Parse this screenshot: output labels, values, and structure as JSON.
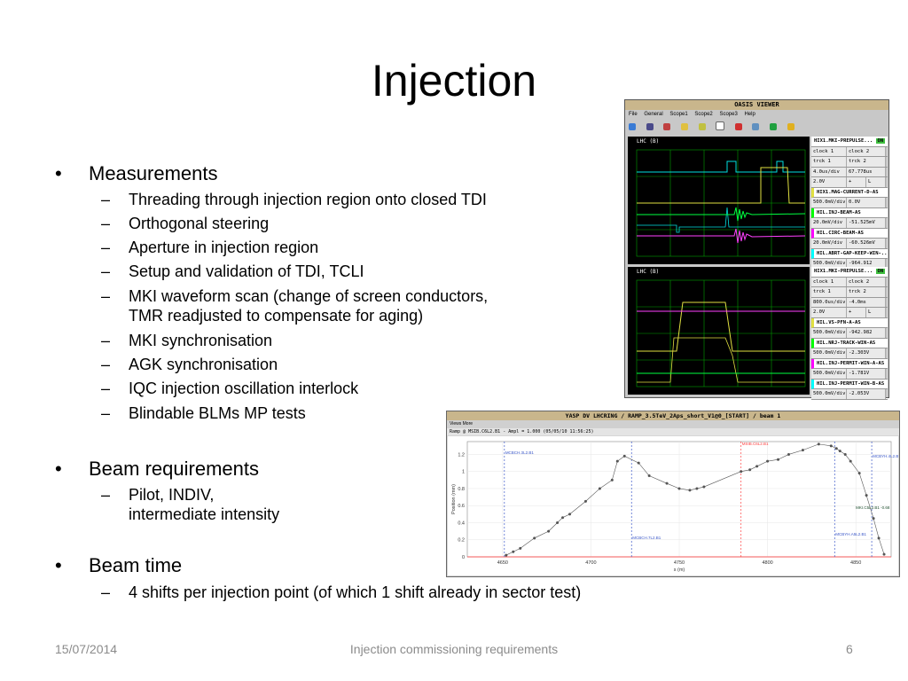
{
  "slide": {
    "title": "Injection",
    "sections": [
      {
        "label": "Measurements",
        "items": [
          "Threading through injection region onto closed TDI",
          "Orthogonal steering",
          "Aperture in injection region",
          "Setup and validation of TDI, TCLI",
          "MKI waveform scan (change of screen conductors,",
          "TMR readjusted to compensate for aging)",
          "MKI synchronisation",
          "AGK synchronisation",
          "IQC injection oscillation interlock",
          "Blindable BLMs MP tests"
        ]
      },
      {
        "label": "Beam requirements",
        "items": [
          "Pilot, INDIV,",
          "intermediate intensity"
        ]
      },
      {
        "label": "Beam time",
        "items": [
          "4 shifts per injection point (of which 1 shift already in sector test)"
        ]
      }
    ],
    "bullet_glyph": "•",
    "dash_glyph": "–"
  },
  "footer": {
    "date": "15/07/2014",
    "center": "Injection commissioning requirements",
    "page": "6"
  },
  "oasis": {
    "title": "OASIS VIEWER",
    "menu": [
      "File",
      "General",
      "Scope1",
      "Scope2",
      "Scope3",
      "Help"
    ],
    "scope1": {
      "label": "LHC (B)",
      "header": "HIX1.MKI-PREPULSE...",
      "status": "ON",
      "rows": [
        [
          "clock 1",
          "clock 2"
        ],
        [
          "trck 1",
          "trck 2"
        ],
        [
          "4.0us/div",
          "67.778us"
        ],
        [
          "2.0V",
          "+",
          "L"
        ]
      ],
      "channels": [
        {
          "name": "HIX1.MAG-CURRENT-D-AS",
          "scale": "500.0mV/div",
          "value": "0.0V",
          "color": "#ffff00"
        },
        {
          "name": "HIL.INJ-BEAM-AS",
          "scale": "20.0mV/div",
          "value": "-51.525mV",
          "color": "#00ff00"
        },
        {
          "name": "HIL.CIRC-BEAM-AS",
          "scale": "20.0mV/div",
          "value": "-60.526mV",
          "color": "#ff00ff"
        },
        {
          "name": "HIL.ABRT-GAP-KEEP-WIN-...",
          "scale": "500.0mV/div",
          "value": "-964.912",
          "color": "#00ffff"
        }
      ]
    },
    "scope2": {
      "label": "LHC (B)",
      "header": "HIX1.MKI-PREPULSE...",
      "status": "ON",
      "rows": [
        [
          "clock 1",
          "clock 2"
        ],
        [
          "trck 1",
          "trck 2"
        ],
        [
          "800.0us/div",
          "-4.0ms"
        ],
        [
          "2.0V",
          "+",
          "L"
        ]
      ],
      "channels": [
        {
          "name": "HIL.VS-PFN-A-AS",
          "scale": "500.0mV/div",
          "value": "-942.982",
          "color": "#ffff00"
        },
        {
          "name": "HIL.NRJ-TRACK-WIN-AS",
          "scale": "500.0mV/div",
          "value": "-2.303V",
          "color": "#00ff00"
        },
        {
          "name": "HIL.INJ-PERMIT-WIN-A-AS",
          "scale": "500.0mV/div",
          "value": "-1.781V",
          "color": "#ff00ff"
        },
        {
          "name": "HIL.INJ-PERMIT-WIN-B-AS",
          "scale": "500.0mV/div",
          "value": "-2.053V",
          "color": "#00ffff"
        }
      ]
    }
  },
  "yasp": {
    "title": "YASP DV LHCRING / RAMP_3.5TeV_2Aps_short_V1@0_[START] / beam 1",
    "toolbar": "Views   More",
    "info": "Ramp @ MSIB.C6L2.B1 - Ampl = 1.000 (05/05/10 11:56:25)",
    "chart_data": {
      "type": "scatter",
      "xlabel": "s (m)",
      "ylabel": "Position (mm)",
      "xlim": [
        4630,
        4870
      ],
      "ylim": [
        0,
        1.35
      ],
      "xticks": [
        4650,
        4700,
        4750,
        4800,
        4850
      ],
      "yticks": [
        0,
        0.2,
        0.4,
        0.6,
        0.8,
        1,
        1.2
      ],
      "x": [
        4652,
        4656,
        4660,
        4668,
        4676,
        4681,
        4684,
        4688,
        4697,
        4705,
        4712,
        4715,
        4719,
        4727,
        4733,
        4743,
        4750,
        4756,
        4760,
        4764,
        4785,
        4790,
        4794,
        4800,
        4806,
        4812,
        4820,
        4829,
        4836,
        4839,
        4841,
        4844,
        4847,
        4852,
        4856,
        4860,
        4863,
        4866
      ],
      "values": [
        0.02,
        0.06,
        0.1,
        0.22,
        0.3,
        0.4,
        0.46,
        0.5,
        0.65,
        0.8,
        0.9,
        1.12,
        1.18,
        1.1,
        0.95,
        0.86,
        0.8,
        0.78,
        0.8,
        0.82,
        1.0,
        1.02,
        1.06,
        1.12,
        1.14,
        1.2,
        1.25,
        1.32,
        1.3,
        1.27,
        1.24,
        1.2,
        1.12,
        0.98,
        0.72,
        0.45,
        0.22,
        0.03
      ],
      "markers": [
        {
          "label": "MCBCH.3L2.B1",
          "x": 4651,
          "color": "#3a57c8"
        },
        {
          "label": "MCBCH.7L2.B1",
          "x": 4723,
          "color": "#3a57c8"
        },
        {
          "label": "MSIB.C6L2.B1",
          "x": 4785,
          "color": "#ff4040"
        },
        {
          "label": "MCBYH.A5L2.B1",
          "x": 4838,
          "color": "#3a57c8"
        },
        {
          "label": "MCBYH.4L2.B1",
          "x": 4859,
          "color": "#3a57c8"
        }
      ],
      "annotation": "MKI.C5L2.B1 -0.68"
    }
  }
}
